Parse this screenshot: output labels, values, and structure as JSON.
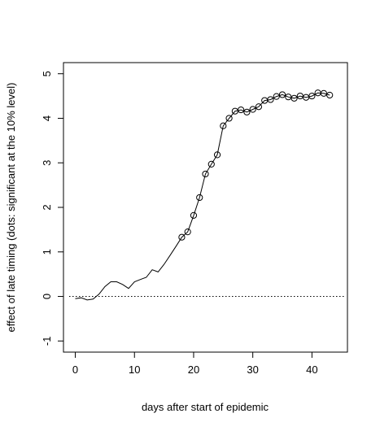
{
  "chart_data": {
    "type": "line",
    "title": "",
    "xlabel": "days after start of epidemic",
    "ylabel": "effect of late timing (dots: significant at the 10% level)",
    "xlim": [
      -2,
      46
    ],
    "ylim": [
      -1.25,
      5.25
    ],
    "x_ticks": [
      0,
      10,
      20,
      30,
      40
    ],
    "y_ticks": [
      -1,
      0,
      1,
      2,
      3,
      4,
      5
    ],
    "x_tick_labels": [
      "0",
      "10",
      "20",
      "30",
      "40"
    ],
    "y_tick_labels": [
      "-1",
      "0",
      "1",
      "2",
      "3",
      "4",
      "5"
    ],
    "reference_line": {
      "y": 0,
      "style": "dotted"
    },
    "grid": false,
    "series": [
      {
        "x": [
          0,
          1,
          2,
          3,
          4,
          5,
          6,
          7,
          8,
          9,
          10,
          11,
          12,
          13,
          14,
          15,
          16,
          17,
          18,
          19,
          20,
          21,
          22,
          23,
          24,
          25,
          26,
          27,
          28,
          29,
          30,
          31,
          32,
          33,
          34,
          35,
          36,
          37,
          38,
          39,
          40,
          41,
          42,
          43
        ],
        "y": [
          -0.05,
          -0.03,
          -0.08,
          -0.06,
          0.05,
          0.22,
          0.33,
          0.33,
          0.27,
          0.18,
          0.33,
          0.38,
          0.43,
          0.6,
          0.55,
          0.72,
          0.92,
          1.12,
          1.33,
          1.45,
          1.82,
          2.22,
          2.75,
          2.97,
          3.18,
          3.83,
          4.0,
          4.16,
          4.19,
          4.14,
          4.2,
          4.26,
          4.4,
          4.42,
          4.49,
          4.53,
          4.48,
          4.45,
          4.5,
          4.47,
          4.5,
          4.57,
          4.56,
          4.52
        ],
        "significant": [
          false,
          false,
          false,
          false,
          false,
          false,
          false,
          false,
          false,
          false,
          false,
          false,
          false,
          false,
          false,
          false,
          false,
          false,
          true,
          true,
          true,
          true,
          true,
          true,
          true,
          true,
          true,
          true,
          true,
          true,
          true,
          true,
          true,
          true,
          true,
          true,
          true,
          true,
          true,
          true,
          true,
          true,
          true,
          true
        ]
      }
    ]
  }
}
